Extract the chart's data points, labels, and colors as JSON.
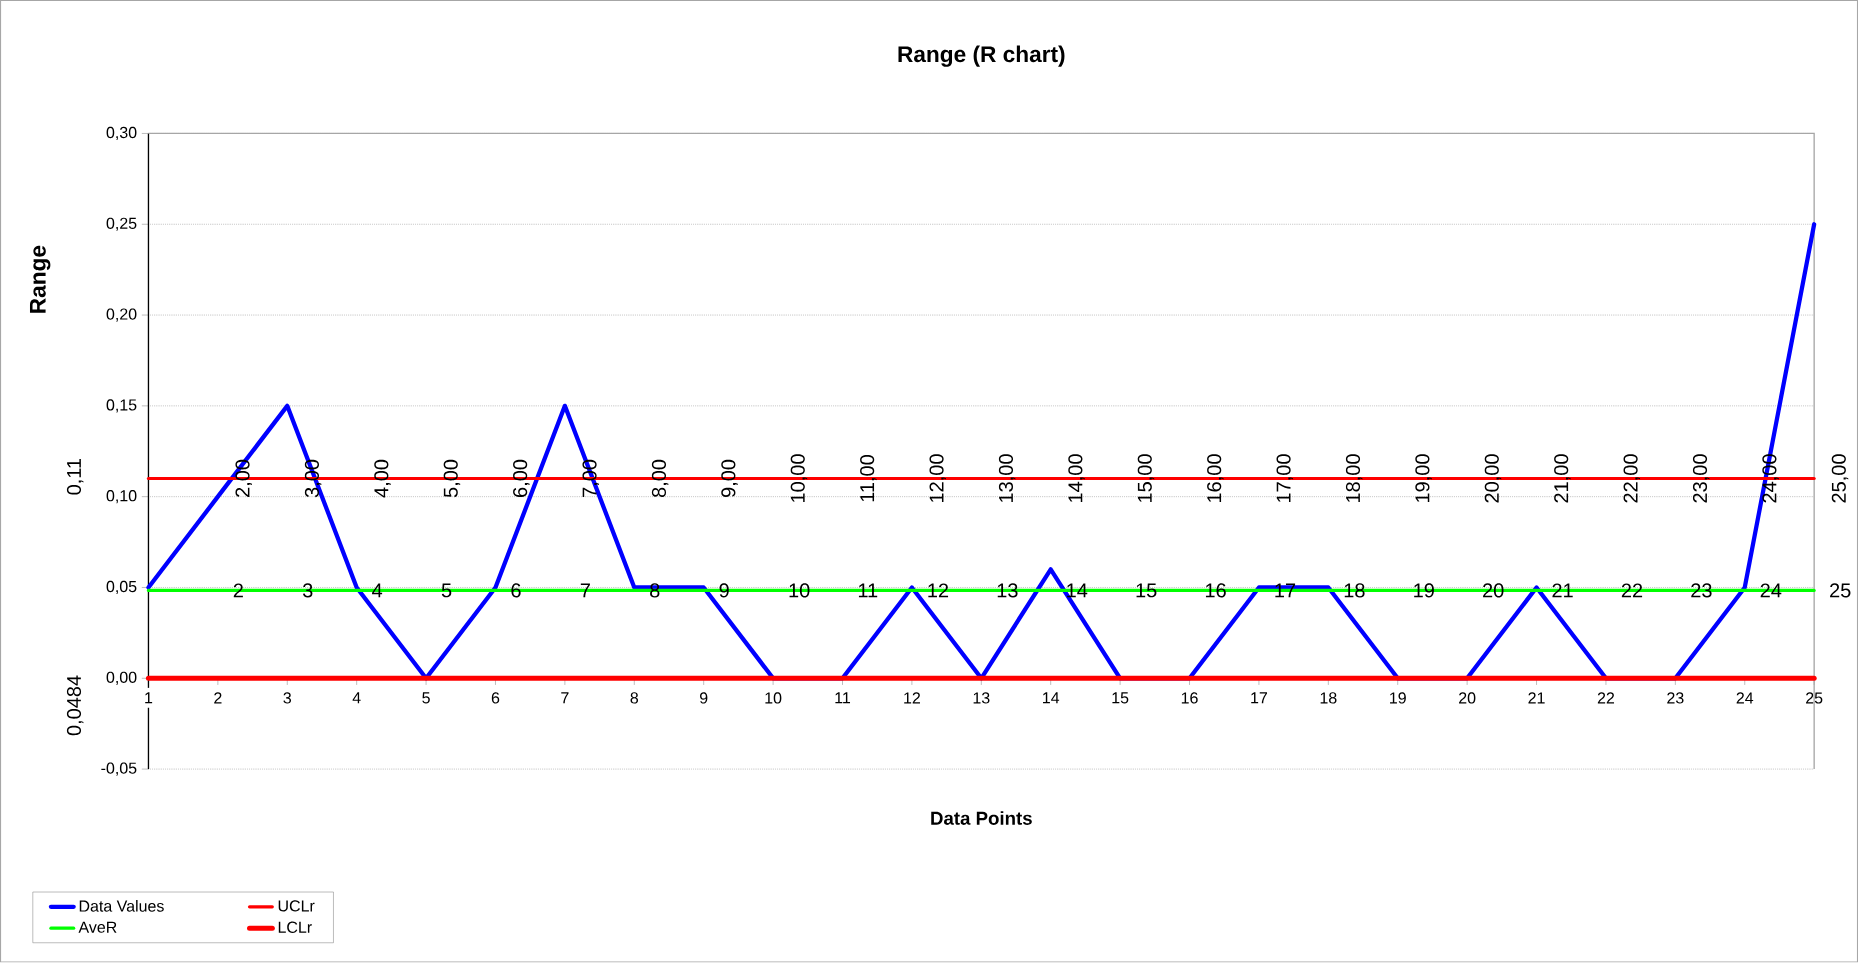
{
  "chart_data": {
    "type": "line",
    "title": "Range (R chart)",
    "xlabel": "Data Points",
    "ylabel": "Range",
    "x": [
      1,
      2,
      3,
      4,
      5,
      6,
      7,
      8,
      9,
      10,
      11,
      12,
      13,
      14,
      15,
      16,
      17,
      18,
      19,
      20,
      21,
      22,
      23,
      24,
      25
    ],
    "series": [
      {
        "name": "Data Values",
        "color": "#0000ff",
        "values": [
          0.05,
          0.1,
          0.15,
          0.05,
          0,
          0.05,
          0.15,
          0.05,
          0.05,
          0,
          0,
          0.05,
          0,
          0.06,
          0,
          0,
          0.05,
          0.05,
          0,
          0,
          0.05,
          0,
          0,
          0.05,
          0.25
        ]
      },
      {
        "name": "UCLr",
        "color": "#ff0000",
        "values": [
          0.11,
          0.11,
          0.11,
          0.11,
          0.11,
          0.11,
          0.11,
          0.11,
          0.11,
          0.11,
          0.11,
          0.11,
          0.11,
          0.11,
          0.11,
          0.11,
          0.11,
          0.11,
          0.11,
          0.11,
          0.11,
          0.11,
          0.11,
          0.11,
          0.11
        ]
      },
      {
        "name": "AveR",
        "color": "#00ff00",
        "values": [
          0.0484,
          0.0484,
          0.0484,
          0.0484,
          0.0484,
          0.0484,
          0.0484,
          0.0484,
          0.0484,
          0.0484,
          0.0484,
          0.0484,
          0.0484,
          0.0484,
          0.0484,
          0.0484,
          0.0484,
          0.0484,
          0.0484,
          0.0484,
          0.0484,
          0.0484,
          0.0484,
          0.0484,
          0.0484
        ]
      },
      {
        "name": "LCLr",
        "color": "#ff0000",
        "values": [
          0,
          0,
          0,
          0,
          0,
          0,
          0,
          0,
          0,
          0,
          0,
          0,
          0,
          0,
          0,
          0,
          0,
          0,
          0,
          0,
          0,
          0,
          0,
          0,
          0
        ]
      }
    ],
    "xlim": [
      1,
      25
    ],
    "xticks": [
      1,
      2,
      3,
      4,
      5,
      6,
      7,
      8,
      9,
      10,
      11,
      12,
      13,
      14,
      15,
      16,
      17,
      18,
      19,
      20,
      21,
      22,
      23,
      24,
      25
    ],
    "ylim": [
      -0.05,
      0.3
    ],
    "yticks": [
      {
        "value": -0.05,
        "label": "-0,05"
      },
      {
        "value": 0,
        "label": "0,00"
      },
      {
        "value": 0.05,
        "label": "0,05"
      },
      {
        "value": 0.1,
        "label": "0,10"
      },
      {
        "value": 0.15,
        "label": "0,15"
      },
      {
        "value": 0.2,
        "label": "0,20"
      },
      {
        "value": 0.25,
        "label": "0,25"
      },
      {
        "value": 0.3,
        "label": "0,30"
      }
    ],
    "grid": "y",
    "legend": "bottom left",
    "marker": "none",
    "line_style": "solid",
    "annotations": [
      "0,11",
      {
        "text": "2,00",
        "x": 2,
        "y": 0.11
      },
      {
        "text": "3,00",
        "x": 3,
        "y": 0.11
      },
      {
        "text": "4,00",
        "x": 4,
        "y": 0.11
      },
      {
        "text": "5,00",
        "x": 5,
        "y": 0.11
      },
      {
        "text": "6,00",
        "x": 6,
        "y": 0.11
      },
      {
        "text": "7,00",
        "x": 7,
        "y": 0.11
      },
      {
        "text": "8,00",
        "x": 8,
        "y": 0.11
      },
      {
        "text": "9,00",
        "x": 9,
        "y": 0.11
      },
      {
        "text": "10,00",
        "x": 10,
        "y": 0.11
      },
      {
        "text": "11,00",
        "x": 11,
        "y": 0.11
      },
      {
        "text": "12,00",
        "x": 12,
        "y": 0.11
      },
      {
        "text": "13,00",
        "x": 13,
        "y": 0.11
      },
      {
        "text": "14,00",
        "x": 14,
        "y": 0.11
      },
      {
        "text": "15,00",
        "x": 15,
        "y": 0.11
      },
      {
        "text": "16,00",
        "x": 16,
        "y": 0.11
      },
      {
        "text": "17,00",
        "x": 17,
        "y": 0.11
      },
      {
        "text": "18,00",
        "x": 18,
        "y": 0.11
      },
      {
        "text": "19,00",
        "x": 19,
        "y": 0.11
      },
      {
        "text": "20,00",
        "x": 20,
        "y": 0.11
      },
      {
        "text": "21,00",
        "x": 21,
        "y": 0.11
      },
      {
        "text": "22,00",
        "x": 22,
        "y": 0.11
      },
      {
        "text": "23,00",
        "x": 23,
        "y": 0.11
      },
      {
        "text": "24,00",
        "x": 24,
        "y": 0.11
      },
      {
        "text": "25,00",
        "x": 25,
        "y": 0.11
      },
      "0,0484",
      {
        "text": "2",
        "x": 2,
        "y": 0.0484
      },
      {
        "text": "3",
        "x": 3,
        "y": 0.0484
      },
      {
        "text": "4",
        "x": 4,
        "y": 0.0484
      },
      {
        "text": "5",
        "x": 5,
        "y": 0.0484
      },
      {
        "text": "6",
        "x": 6,
        "y": 0.0484
      },
      {
        "text": "7",
        "x": 7,
        "y": 0.0484
      },
      {
        "text": "8",
        "x": 8,
        "y": 0.0484
      },
      {
        "text": "9",
        "x": 9,
        "y": 0.0484
      },
      {
        "text": "10",
        "x": 10,
        "y": 0.0484
      },
      {
        "text": "11",
        "x": 11,
        "y": 0.0484
      },
      {
        "text": "12",
        "x": 12,
        "y": 0.0484
      },
      {
        "text": "13",
        "x": 13,
        "y": 0.0484
      },
      {
        "text": "14",
        "x": 14,
        "y": 0.0484
      },
      {
        "text": "15",
        "x": 15,
        "y": 0.0484
      },
      {
        "text": "16",
        "x": 16,
        "y": 0.0484
      },
      {
        "text": "17",
        "x": 17,
        "y": 0.0484
      },
      {
        "text": "18",
        "x": 18,
        "y": 0.0484
      },
      {
        "text": "19",
        "x": 19,
        "y": 0.0484
      },
      {
        "text": "20",
        "x": 20,
        "y": 0.0484
      },
      {
        "text": "21",
        "x": 21,
        "y": 0.0484
      },
      {
        "text": "22",
        "x": 22,
        "y": 0.0484
      },
      {
        "text": "23",
        "x": 23,
        "y": 0.0484
      },
      {
        "text": "24",
        "x": 24,
        "y": 0.0484
      },
      {
        "text": "25",
        "x": 25,
        "y": 0.0484
      }
    ]
  }
}
